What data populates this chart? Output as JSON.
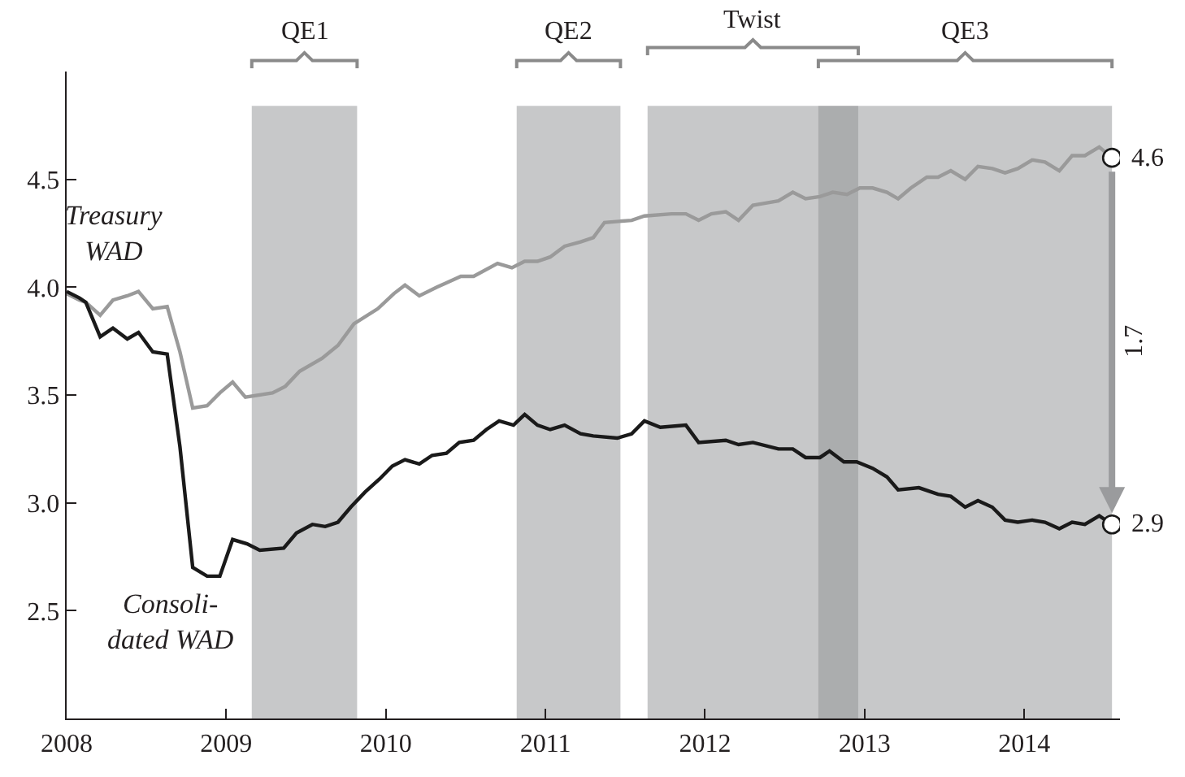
{
  "chart_data": {
    "type": "line",
    "xlim": [
      2008,
      2014.6
    ],
    "ylim": [
      2,
      5
    ],
    "xticks": [
      2008,
      2009,
      2010,
      2011,
      2012,
      2013,
      2014
    ],
    "yticks": [
      2.5,
      {
        "value": 3,
        "label": "3.0"
      },
      3.5,
      {
        "value": 4,
        "label": "4.0"
      },
      4.5
    ],
    "grid": false,
    "legend": false,
    "line_style": "solid",
    "series": [
      {
        "name": "Treasury\nWAD",
        "color": "#9a9a9a",
        "x": [
          2008.0,
          2008.08,
          2008.12,
          2008.21,
          2008.29,
          2008.38,
          2008.45,
          2008.54,
          2008.63,
          2008.71,
          2008.79,
          2008.88,
          2008.96,
          2009.04,
          2009.12,
          2009.29,
          2009.37,
          2009.46,
          2009.6,
          2009.7,
          2009.8,
          2009.95,
          2010.05,
          2010.12,
          2010.21,
          2010.32,
          2010.38,
          2010.47,
          2010.55,
          2010.7,
          2010.79,
          2010.87,
          2010.95,
          2011.03,
          2011.12,
          2011.22,
          2011.3,
          2011.37,
          2011.54,
          2011.62,
          2011.79,
          2011.88,
          2011.96,
          2012.04,
          2012.13,
          2012.21,
          2012.3,
          2012.38,
          2012.46,
          2012.55,
          2012.63,
          2012.72,
          2012.8,
          2012.89,
          2012.97,
          2013.05,
          2013.14,
          2013.21,
          2013.29,
          2013.39,
          2013.46,
          2013.54,
          2013.63,
          2013.71,
          2013.8,
          2013.88,
          2013.96,
          2014.05,
          2014.13,
          2014.22,
          2014.3,
          2014.38,
          2014.47,
          2014.55
        ],
        "values": [
          3.97,
          3.94,
          3.93,
          3.87,
          3.94,
          3.96,
          3.98,
          3.9,
          3.91,
          3.7,
          3.44,
          3.45,
          3.51,
          3.56,
          3.49,
          3.51,
          3.54,
          3.61,
          3.67,
          3.73,
          3.83,
          3.9,
          3.97,
          4.01,
          3.96,
          4.0,
          4.02,
          4.05,
          4.05,
          4.11,
          4.09,
          4.12,
          4.12,
          4.14,
          4.19,
          4.21,
          4.23,
          4.3,
          4.31,
          4.33,
          4.34,
          4.34,
          4.31,
          4.34,
          4.35,
          4.31,
          4.38,
          4.39,
          4.4,
          4.44,
          4.41,
          4.42,
          4.44,
          4.43,
          4.46,
          4.46,
          4.44,
          4.41,
          4.46,
          4.51,
          4.51,
          4.54,
          4.5,
          4.56,
          4.55,
          4.53,
          4.55,
          4.59,
          4.58,
          4.54,
          4.61,
          4.61,
          4.65,
          4.6
        ]
      },
      {
        "name": "Consoli-\ndated WAD",
        "color": "#1a1a1a",
        "x": [
          2008.0,
          2008.08,
          2008.12,
          2008.21,
          2008.29,
          2008.38,
          2008.45,
          2008.54,
          2008.63,
          2008.71,
          2008.79,
          2008.88,
          2008.96,
          2009.04,
          2009.13,
          2009.21,
          2009.36,
          2009.44,
          2009.54,
          2009.62,
          2009.7,
          2009.78,
          2009.87,
          2009.96,
          2010.04,
          2010.12,
          2010.21,
          2010.29,
          2010.38,
          2010.46,
          2010.55,
          2010.63,
          2010.71,
          2010.8,
          2010.87,
          2010.95,
          2011.03,
          2011.12,
          2011.22,
          2011.3,
          2011.45,
          2011.54,
          2011.62,
          2011.72,
          2011.88,
          2011.96,
          2012.13,
          2012.21,
          2012.3,
          2012.46,
          2012.55,
          2012.63,
          2012.72,
          2012.78,
          2012.87,
          2012.95,
          2013.05,
          2013.14,
          2013.21,
          2013.34,
          2013.46,
          2013.54,
          2013.63,
          2013.71,
          2013.8,
          2013.88,
          2013.96,
          2014.05,
          2014.13,
          2014.22,
          2014.3,
          2014.38,
          2014.47,
          2014.55
        ],
        "values": [
          3.98,
          3.95,
          3.93,
          3.77,
          3.81,
          3.76,
          3.79,
          3.7,
          3.69,
          3.26,
          2.7,
          2.66,
          2.66,
          2.83,
          2.81,
          2.78,
          2.79,
          2.86,
          2.9,
          2.89,
          2.91,
          2.98,
          3.05,
          3.11,
          3.17,
          3.2,
          3.18,
          3.22,
          3.23,
          3.28,
          3.29,
          3.34,
          3.38,
          3.36,
          3.41,
          3.36,
          3.34,
          3.36,
          3.32,
          3.31,
          3.3,
          3.32,
          3.38,
          3.35,
          3.36,
          3.28,
          3.29,
          3.27,
          3.28,
          3.25,
          3.25,
          3.21,
          3.21,
          3.24,
          3.19,
          3.19,
          3.16,
          3.12,
          3.06,
          3.07,
          3.04,
          3.03,
          2.98,
          3.01,
          2.98,
          2.92,
          2.91,
          2.92,
          2.91,
          2.88,
          2.91,
          2.9,
          2.94,
          2.9
        ]
      }
    ],
    "bands": [
      {
        "axis": "x",
        "from": 2009.16,
        "to": 2009.82,
        "label": "QE1",
        "color": "#909193"
      },
      {
        "axis": "x",
        "from": 2010.82,
        "to": 2011.47,
        "label": "QE2",
        "color": "#909193"
      },
      {
        "axis": "x",
        "from": 2011.64,
        "to": 2012.96,
        "label": "Twist",
        "color": "#909193"
      },
      {
        "axis": "x",
        "from": 2012.71,
        "to": 2014.55,
        "label": "QE3",
        "color": "#909193"
      }
    ],
    "annotations": [
      {
        "text": "4.6",
        "x": 2014.55,
        "y": 4.6
      },
      {
        "text": "2.9",
        "x": 2014.55,
        "y": 2.9
      },
      "1.7"
    ]
  }
}
